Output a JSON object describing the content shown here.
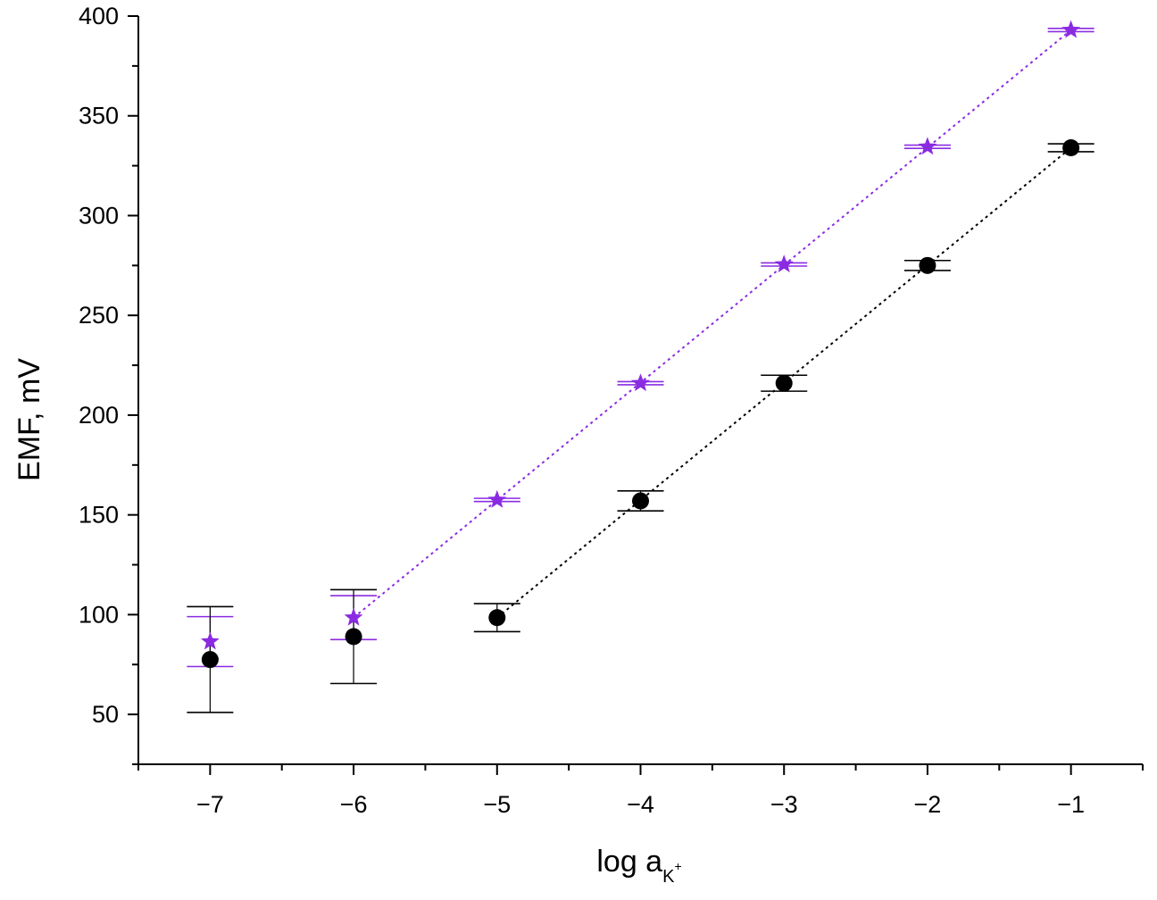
{
  "chart_data": {
    "type": "scatter",
    "xlabel": "log a",
    "xlabel_subscript": "K",
    "xlabel_superscript": "+",
    "ylabel": "EMF, mV",
    "xlim": [
      -7.5,
      -0.5
    ],
    "ylim": [
      25,
      400
    ],
    "xticks": [
      -7,
      -6,
      -5,
      -4,
      -3,
      -2,
      -1
    ],
    "xtick_labels": [
      "−7",
      "−6",
      "−5",
      "−4",
      "−3",
      "−2",
      "−1"
    ],
    "yticks": [
      50,
      100,
      150,
      200,
      250,
      300,
      350,
      400
    ],
    "ytick_labels": [
      "50",
      "100",
      "150",
      "200",
      "250",
      "300",
      "350",
      "400"
    ],
    "grid": false,
    "series": [
      {
        "marker": "star",
        "color": "#8a2be2",
        "x": [
          -7,
          -6,
          -5,
          -4,
          -3,
          -2,
          -1
        ],
        "y": [
          86.5,
          98.5,
          157.5,
          216,
          275.5,
          334.5,
          393
        ],
        "err": [
          12.5,
          11,
          0.8,
          0.8,
          0.8,
          0.8,
          0.8
        ],
        "fit_x": [
          -6,
          -1
        ],
        "fit_y": [
          98.5,
          393
        ]
      },
      {
        "marker": "circle",
        "color": "#000000",
        "x": [
          -7,
          -6,
          -5,
          -4,
          -3,
          -2,
          -1
        ],
        "y": [
          77.5,
          89,
          98.5,
          157,
          216,
          275,
          334
        ],
        "err": [
          26.5,
          23.5,
          7,
          5,
          4,
          2.5,
          2
        ],
        "fit_x": [
          -5,
          -1
        ],
        "fit_y": [
          98.5,
          334
        ]
      }
    ]
  }
}
